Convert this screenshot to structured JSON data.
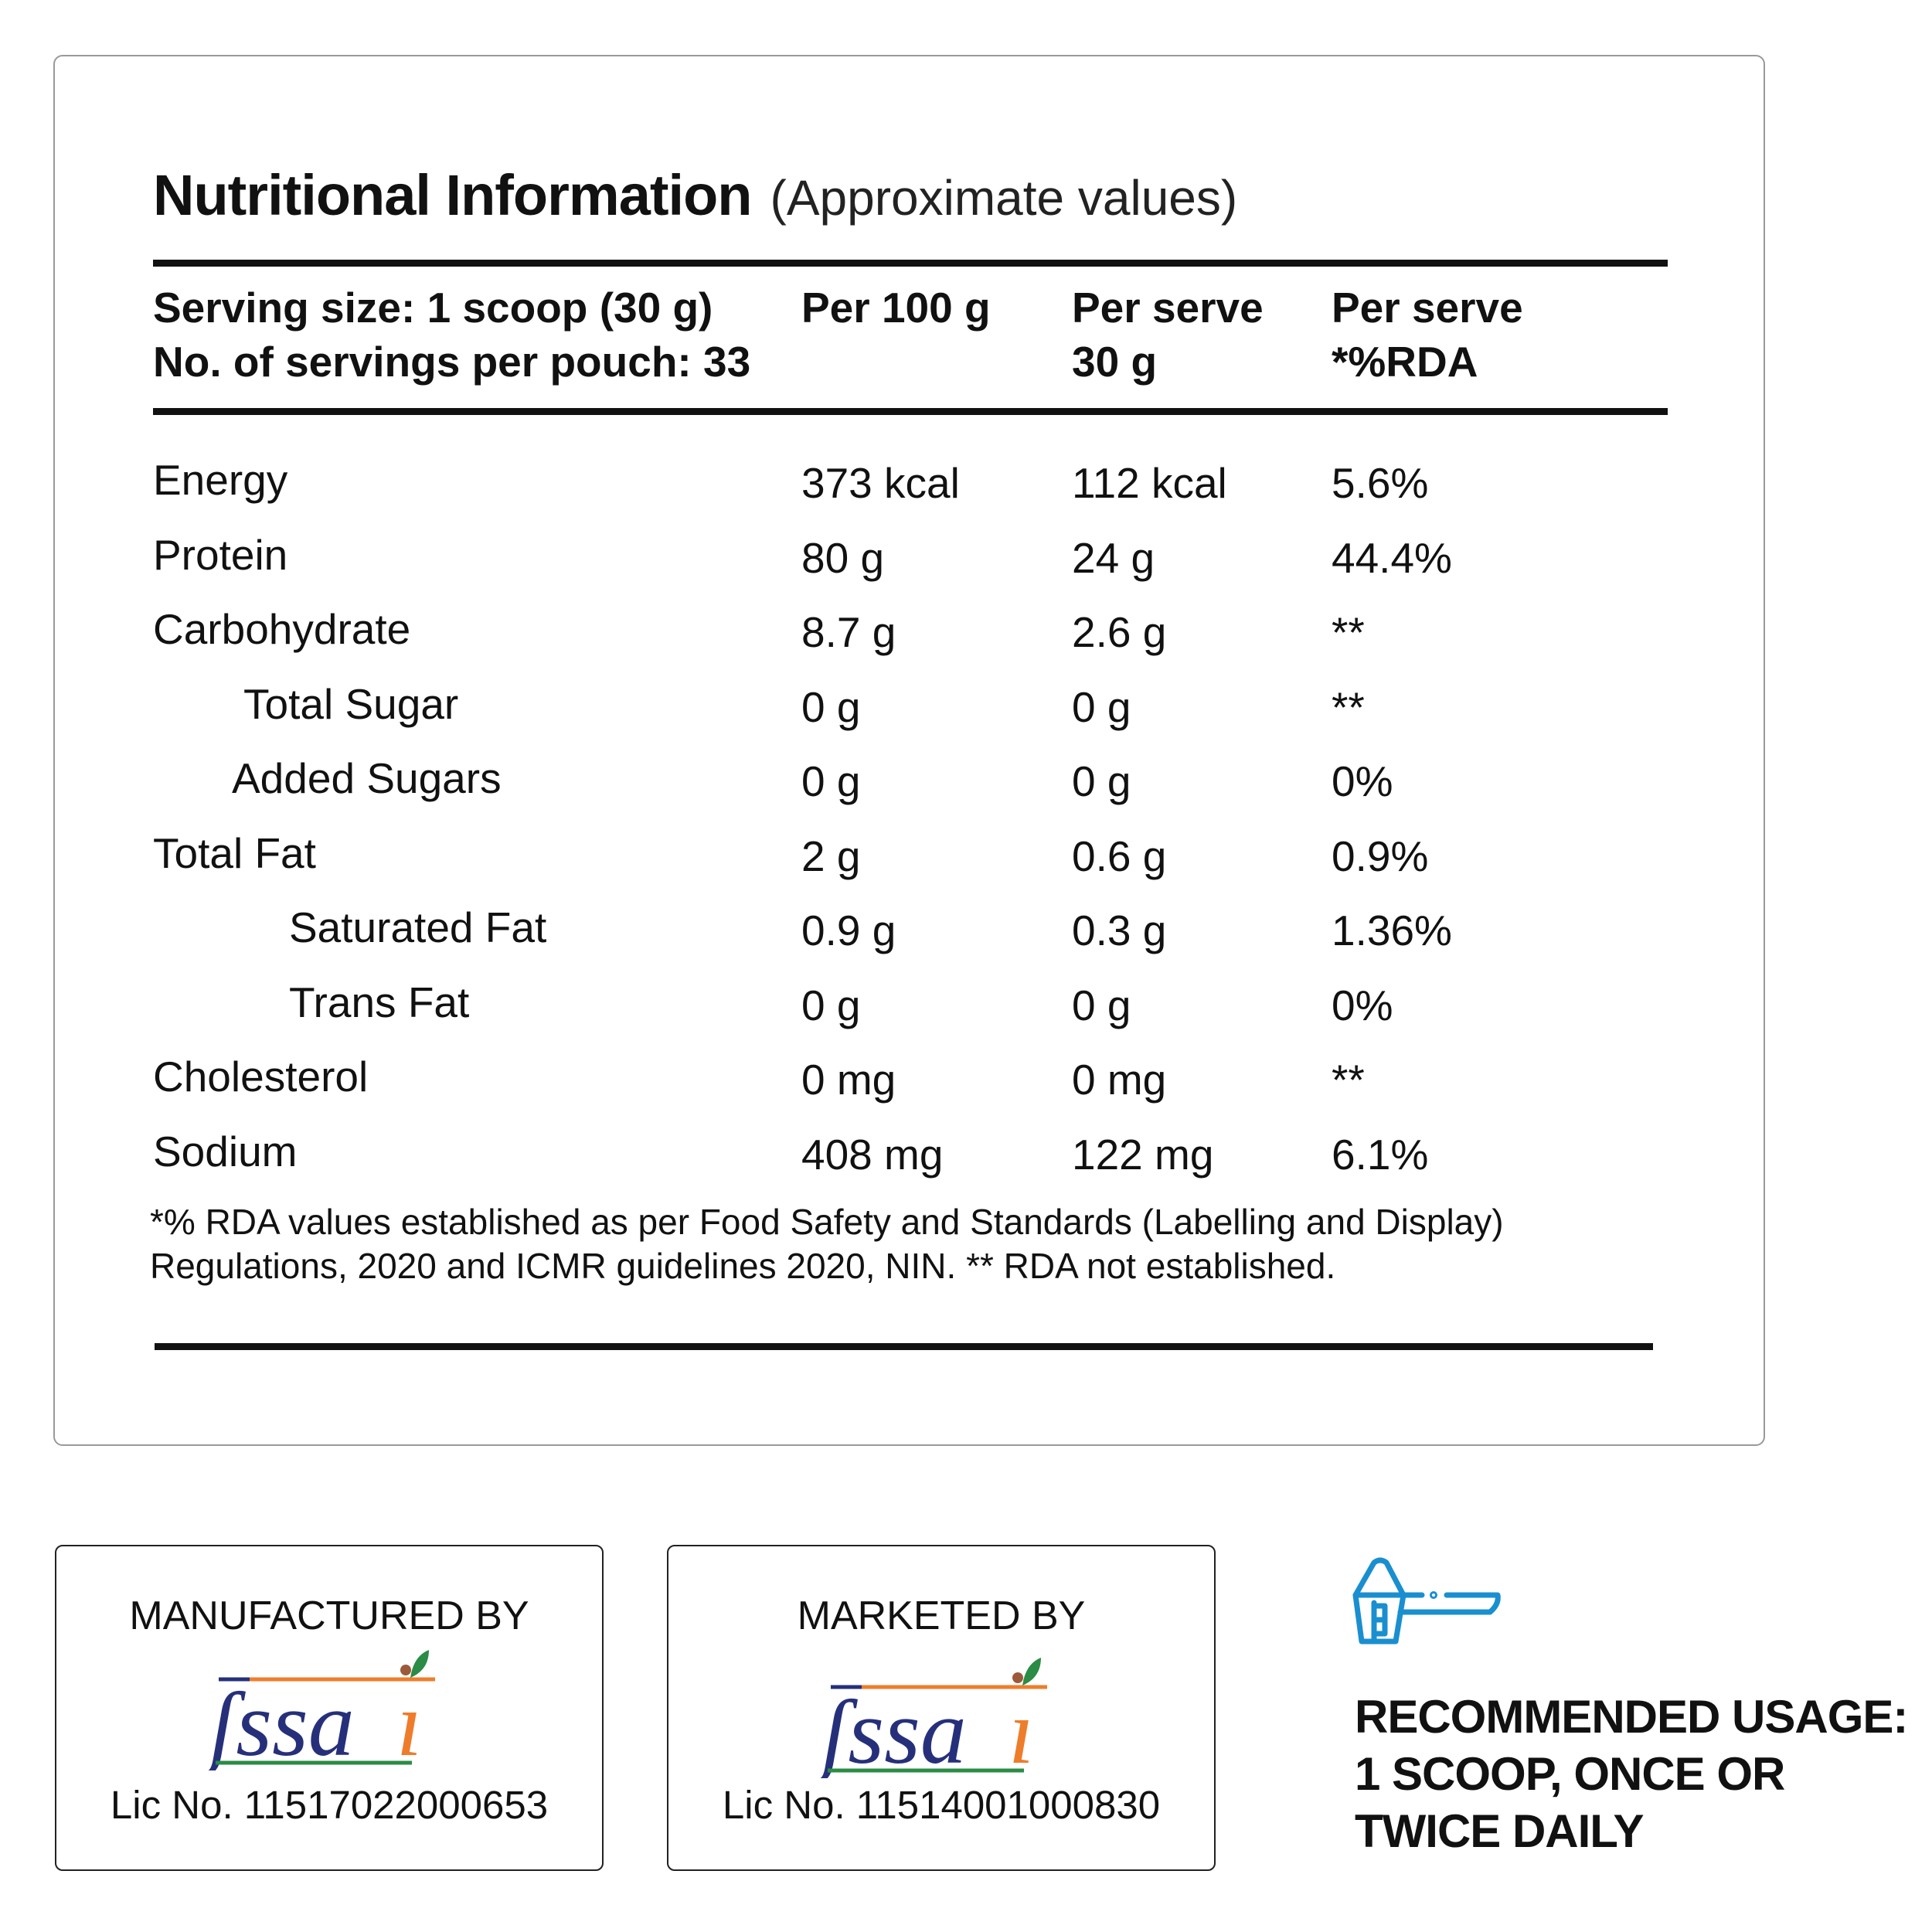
{
  "nutrition": {
    "title": "Nutritional Information",
    "subtitle": "(Approximate values)",
    "header": {
      "serving_line1": "Serving size: 1 scoop (30 g)",
      "serving_line2": "No. of servings per pouch: 33",
      "col1": "Per 100 g",
      "col2_line1": "Per serve",
      "col2_line2": "30 g",
      "col3_line1": "Per serve",
      "col3_line2": "*%RDA"
    },
    "rows": [
      {
        "name": "Energy",
        "per100": "373 kcal",
        "perserve": "112 kcal",
        "rda": "5.6%"
      },
      {
        "name": "Protein",
        "per100": "80 g",
        "perserve": "24 g",
        "rda": "44.4%"
      },
      {
        "name": "Carbohydrate",
        "per100": "8.7 g",
        "perserve": "2.6 g",
        "rda": "**"
      },
      {
        "name": "Total Sugar",
        "per100": "0 g",
        "perserve": "0 g",
        "rda": "**"
      },
      {
        "name": "Added Sugars",
        "per100": "0 g",
        "perserve": "0 g",
        "rda": "0%"
      },
      {
        "name": "Total Fat",
        "per100": "2 g",
        "perserve": "0.6 g",
        "rda": "0.9%"
      },
      {
        "name": "Saturated Fat",
        "per100": "0.9 g",
        "perserve": "0.3 g",
        "rda": "1.36%"
      },
      {
        "name": "Trans Fat",
        "per100": "0 g",
        "perserve": "0 g",
        "rda": "0%"
      },
      {
        "name": "Cholesterol",
        "per100": "0 mg",
        "perserve": "0 mg",
        "rda": "**"
      },
      {
        "name": "Sodium",
        "per100": "408 mg",
        "perserve": "122 mg",
        "rda": "6.1%"
      }
    ],
    "footnote_line1": "*% RDA values established as per Food Safety and Standards (Labelling and Display)",
    "footnote_line2": "Regulations, 2020 and ICMR guidelines 2020, NIN. ** RDA not established."
  },
  "manufacturer": {
    "title": "MANUFACTURED BY",
    "logo": "fssai",
    "license": "Lic No. 11517022000653"
  },
  "marketer": {
    "title": "MARKETED BY",
    "logo": "fssai",
    "license": "Lic No. 11514001000830"
  },
  "usage": {
    "icon": "scoop-icon",
    "line1": "RECOMMENDED USAGE:",
    "line2": "1 SCOOP, ONCE OR",
    "line3": "TWICE DAILY"
  },
  "colors": {
    "icon_blue": "#1a8fd0",
    "fssai_blue": "#26307a",
    "fssai_orange": "#ee7d2b",
    "fssai_green": "#2a8c45"
  }
}
